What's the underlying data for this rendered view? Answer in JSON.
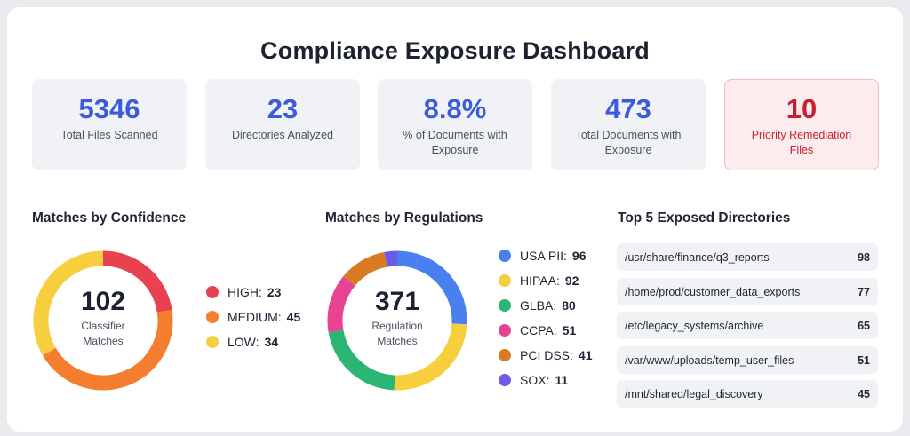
{
  "title": "Compliance Exposure Dashboard",
  "stats": [
    {
      "value": "5346",
      "label": "Total Files Scanned"
    },
    {
      "value": "23",
      "label": "Directories Analyzed"
    },
    {
      "value": "8.8%",
      "label": "% of Documents with Exposure"
    },
    {
      "value": "473",
      "label": "Total Documents with Exposure"
    },
    {
      "value": "10",
      "label": "Priority Remediation Files"
    }
  ],
  "confidence": {
    "title": "Matches by Confidence",
    "total": "102",
    "center_label": "Classifier Matches",
    "items": [
      {
        "label": "HIGH:",
        "value": 23,
        "color": "#e8414f"
      },
      {
        "label": "MEDIUM:",
        "value": 45,
        "color": "#f47d2f"
      },
      {
        "label": "LOW:",
        "value": 34,
        "color": "#f7cf3e"
      }
    ]
  },
  "regulations": {
    "title": "Matches by Regulations",
    "total": "371",
    "center_label": "Regulation Matches",
    "items": [
      {
        "label": "USA PII:",
        "value": 96,
        "color": "#4a7ff0"
      },
      {
        "label": "HIPAA:",
        "value": 92,
        "color": "#f7cf3e"
      },
      {
        "label": "GLBA:",
        "value": 80,
        "color": "#2bb673"
      },
      {
        "label": "CCPA:",
        "value": 51,
        "color": "#e84393"
      },
      {
        "label": "PCI DSS:",
        "value": 41,
        "color": "#d97a25"
      },
      {
        "label": "SOX:",
        "value": 11,
        "color": "#6c5ce7"
      }
    ]
  },
  "directories": {
    "title": "Top 5 Exposed Directories",
    "rows": [
      {
        "path": "/usr/share/finance/q3_reports",
        "count": "98"
      },
      {
        "path": "/home/prod/customer_data_exports",
        "count": "77"
      },
      {
        "path": "/etc/legacy_systems/archive",
        "count": "65"
      },
      {
        "path": "/var/www/uploads/temp_user_files",
        "count": "51"
      },
      {
        "path": "/mnt/shared/legal_discovery",
        "count": "45"
      }
    ]
  }
}
